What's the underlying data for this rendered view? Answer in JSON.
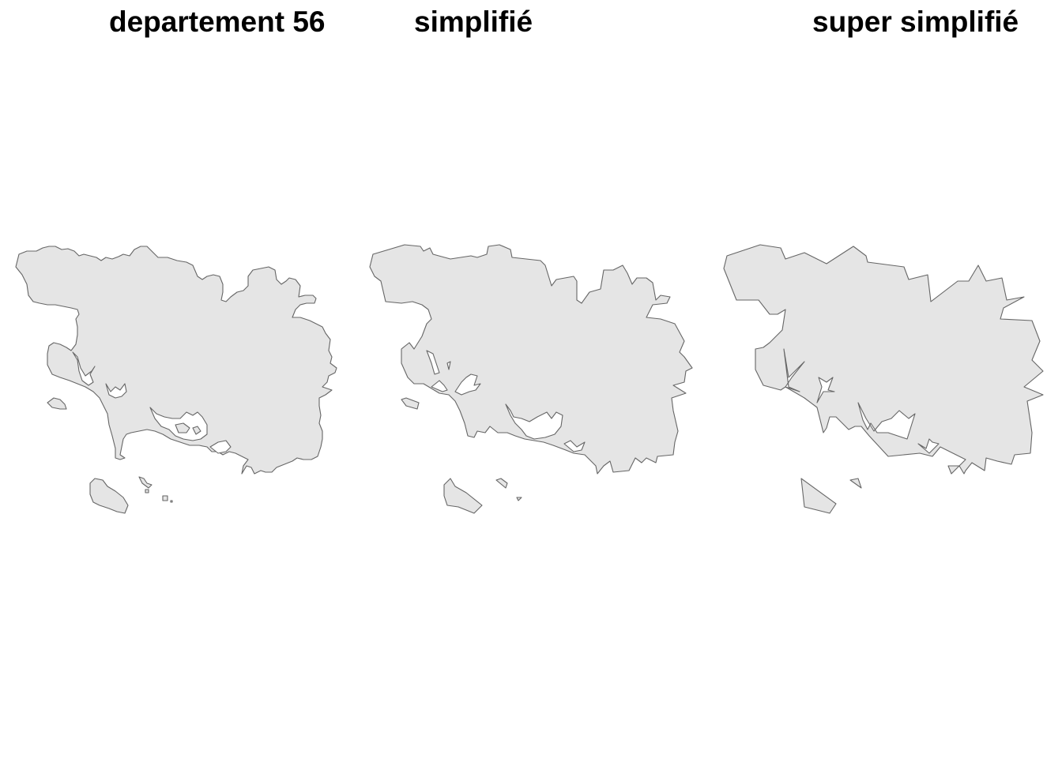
{
  "panels": [
    {
      "title": "departement 56"
    },
    {
      "title": "simplifié"
    },
    {
      "title": "super simplifié"
    }
  ],
  "style": {
    "fill": "#e5e5e5",
    "stroke": "#666666",
    "background": "#ffffff"
  }
}
